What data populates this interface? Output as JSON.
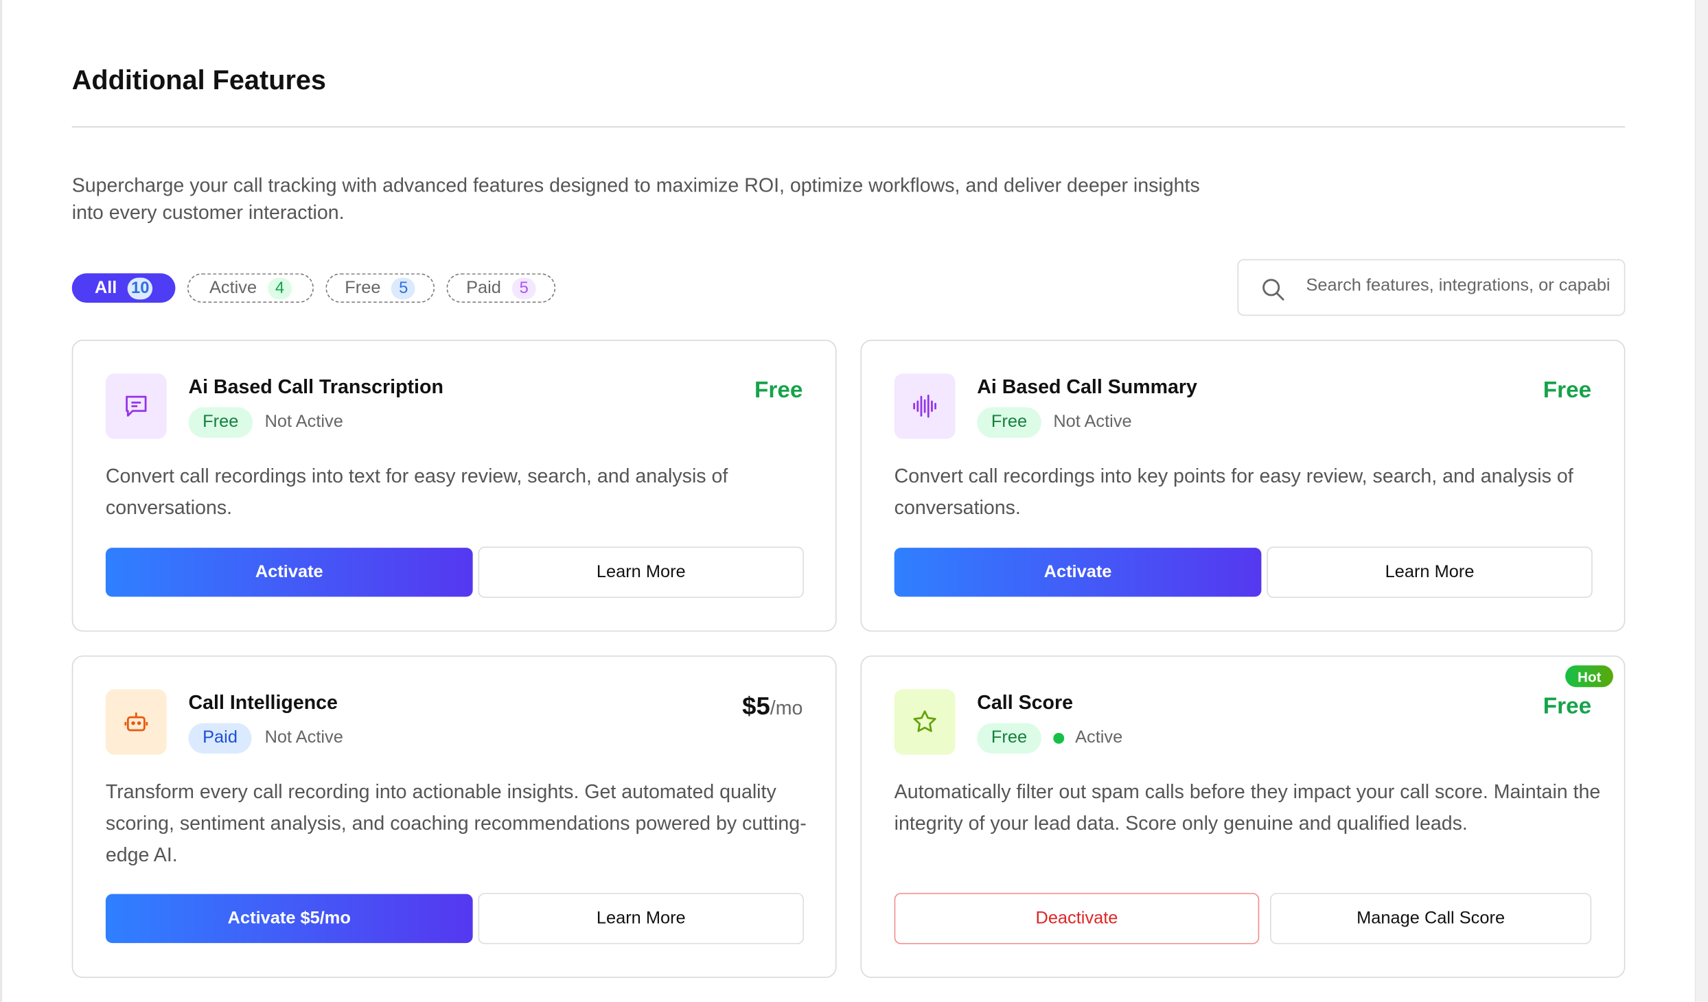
{
  "page": {
    "title": "Additional Features",
    "description": "Supercharge your call tracking with advanced features designed to maximize ROI, optimize workflows, and deliver deeper insights into every customer interaction."
  },
  "filters": [
    {
      "label": "All",
      "count": "10"
    },
    {
      "label": "Active",
      "count": "4"
    },
    {
      "label": "Free",
      "count": "5"
    },
    {
      "label": "Paid",
      "count": "5"
    }
  ],
  "search": {
    "placeholder": "Search features, integrations, or capabilities",
    "icon": "search-icon"
  },
  "colors": {
    "accent": "#4f3cf5",
    "free_green": "#16a34a",
    "danger": "#dc2626",
    "paid_blue": "#1d4ed8"
  },
  "cards": [
    {
      "title": "Ai Based Call Transcription",
      "badge": "Free",
      "status": "Not Active",
      "price": "Free",
      "description": "Convert call recordings into text for easy review, search, and analysis of conversations.",
      "primary": "Activate",
      "secondary": "Learn More",
      "icon": "chat-bubble-icon"
    },
    {
      "title": "Ai Based Call Summary",
      "badge": "Free",
      "status": "Not Active",
      "price": "Free",
      "description": "Convert call recordings into key points for easy review, search, and analysis of conversations.",
      "primary": "Activate",
      "secondary": "Learn More",
      "icon": "waveform-icon"
    },
    {
      "title": "Call Intelligence",
      "badge": "Paid",
      "status": "Not Active",
      "price": "$5",
      "price_unit": "/mo",
      "description": "Transform every call recording into actionable insights. Get automated quality scoring, sentiment analysis, and coaching recommendations powered by cutting-edge AI.",
      "primary": "Activate $5/mo",
      "secondary": "Learn More",
      "icon": "robot-icon"
    },
    {
      "title": "Call Score",
      "badge": "Free",
      "status": "Active",
      "price": "Free",
      "tag": "Hot",
      "description": "Automatically filter out spam calls before they impact your call score. Maintain the integrity of your lead data. Score only genuine and qualified leads.",
      "primary": "Deactivate",
      "secondary": "Manage Call Score",
      "icon": "star-icon"
    }
  ]
}
